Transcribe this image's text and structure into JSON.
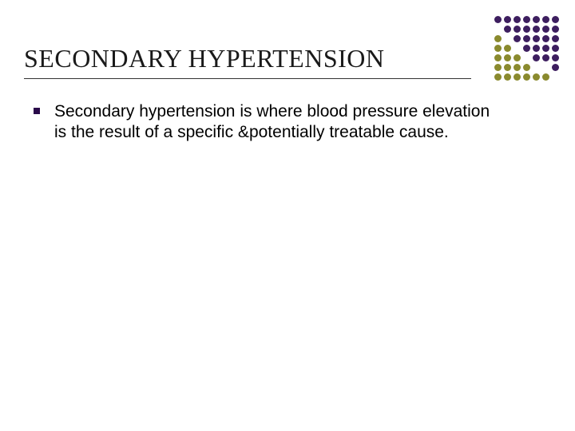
{
  "slide": {
    "title": "SECONDARY HYPERTENSION",
    "bullet_text": "Secondary hypertension is where blood pressure elevation is the result of a specific &potentially treatable cause.",
    "title_color": "#1a1a1a",
    "title_fontsize": 32,
    "title_font": "Times New Roman",
    "body_color": "#000000",
    "body_fontsize": 21,
    "bullet_color": "#2a0a4a",
    "underline_color": "#333333",
    "background_color": "#ffffff"
  },
  "decoration": {
    "type": "dot-grid",
    "rows": 7,
    "cols": 7,
    "dot_radius": 4.5,
    "spacing": 12,
    "colors": {
      "purple": "#3d1e5f",
      "olive": "#8a8a2e",
      "white": "#ffffff"
    },
    "grid": [
      [
        "purple",
        "purple",
        "purple",
        "purple",
        "purple",
        "purple",
        "purple"
      ],
      [
        "white",
        "purple",
        "purple",
        "purple",
        "purple",
        "purple",
        "purple"
      ],
      [
        "olive",
        "white",
        "purple",
        "purple",
        "purple",
        "purple",
        "purple"
      ],
      [
        "olive",
        "olive",
        "white",
        "purple",
        "purple",
        "purple",
        "purple"
      ],
      [
        "olive",
        "olive",
        "olive",
        "white",
        "purple",
        "purple",
        "purple"
      ],
      [
        "olive",
        "olive",
        "olive",
        "olive",
        "white",
        "white",
        "purple"
      ],
      [
        "olive",
        "olive",
        "olive",
        "olive",
        "olive",
        "olive",
        "white"
      ]
    ]
  }
}
